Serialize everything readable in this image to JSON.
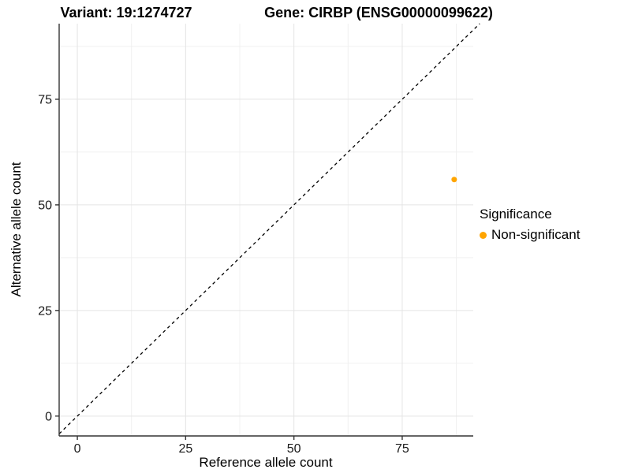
{
  "titles": {
    "variant": "Variant: 19:1274727",
    "gene": "Gene: CIRBP (ENSG00000099622)"
  },
  "chart_data": {
    "type": "scatter",
    "xlabel": "Reference allele count",
    "ylabel": "Alternative allele count",
    "xlim": [
      -4.2,
      91.4
    ],
    "ylim": [
      -4.7,
      92.9
    ],
    "x_ticks": [
      0,
      25,
      50,
      75
    ],
    "y_ticks": [
      0,
      25,
      50,
      75
    ],
    "x_minor": [
      12.5,
      37.5,
      62.5,
      87.5
    ],
    "y_minor": [
      12.5,
      37.5,
      62.5,
      87.5
    ],
    "grid": true,
    "identity_line": {
      "type": "abline",
      "slope": 1,
      "intercept": 0,
      "style": "dashed",
      "color": "#000000"
    },
    "series": [
      {
        "name": "Non-significant",
        "color": "#FFA500",
        "points": [
          {
            "x": 87,
            "y": 56
          }
        ]
      }
    ],
    "legend": {
      "title": "Significance",
      "position": "right",
      "entries": [
        {
          "label": "Non-significant",
          "color": "#FFA500"
        }
      ]
    },
    "colors": {
      "grid_major": "#E4E4E4",
      "grid_minor": "#F0F0F0",
      "axis_line": "#333333",
      "tick_text": "#1A1A1A",
      "background": "#FFFFFF"
    }
  }
}
